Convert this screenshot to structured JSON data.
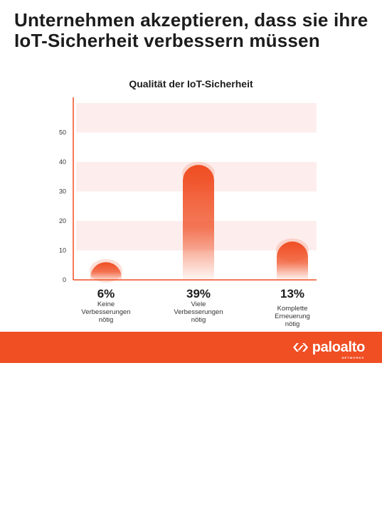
{
  "headline": "Unternehmen akzeptieren, dass sie ihre IoT-Sicherheit verbessern müssen",
  "colors": {
    "accent": "#f04e23",
    "band": "#fdeeed"
  },
  "chart_data": {
    "type": "bar",
    "title": "Qualität der IoT-Sicherheit",
    "xlabel": "",
    "ylabel": "",
    "ylim": [
      0,
      60
    ],
    "yticks": [
      0,
      10,
      20,
      30,
      40,
      50
    ],
    "grid": false,
    "categories": [
      "Keine Verbesserungen nötig",
      "Viele Verbesserungen nötig",
      "Komplette Erneuerung nötig"
    ],
    "category_lines": [
      [
        "Keine",
        "Verbesserungen",
        "nötig"
      ],
      [
        "Viele",
        "Verbesserungen",
        "nötig"
      ],
      [
        "Komplette",
        "Erneuerung",
        "nötig"
      ]
    ],
    "values": [
      6,
      39,
      13
    ],
    "value_labels": [
      "6%",
      "39%",
      "13%"
    ]
  },
  "footer": {
    "logo_text": "paloalto",
    "logo_sub": "NETWORKS",
    "logo_icon": "paloalto-chevron-icon"
  }
}
